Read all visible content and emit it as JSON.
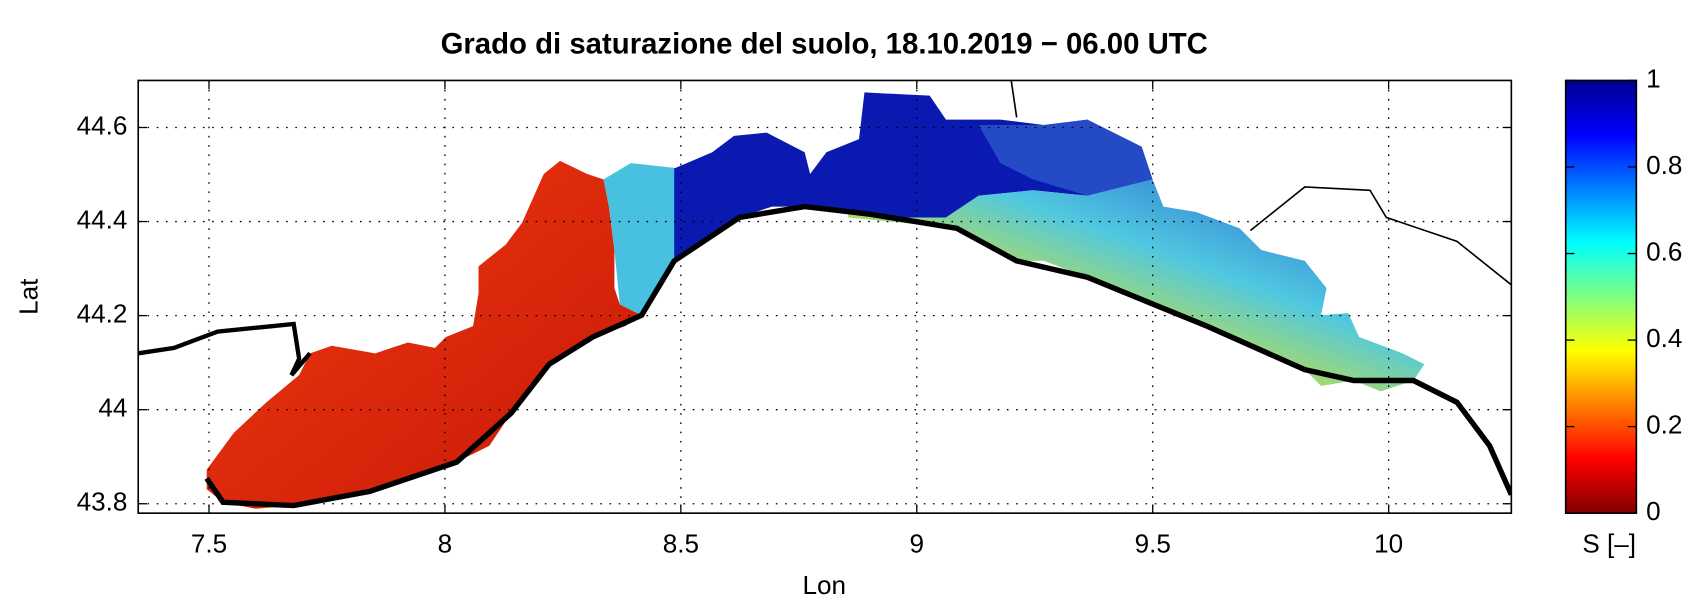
{
  "chart_data": {
    "type": "map",
    "title": "Grado di saturazione del suolo, 18.10.2019 − 06.00 UTC",
    "x_label": "Lon",
    "y_label": "Lat",
    "xlim": [
      7.35,
      10.26
    ],
    "ylim": [
      43.78,
      44.7
    ],
    "xticks": [
      7.5,
      8,
      8.5,
      9,
      9.5,
      10
    ],
    "yticks": [
      43.8,
      44,
      44.2,
      44.4,
      44.6
    ],
    "grid": true,
    "colormap": "jet",
    "colorbar": {
      "label": "S [–]",
      "lim": [
        0,
        1
      ],
      "ticks": [
        0,
        0.2,
        0.4,
        0.6,
        0.8,
        1
      ]
    }
  }
}
